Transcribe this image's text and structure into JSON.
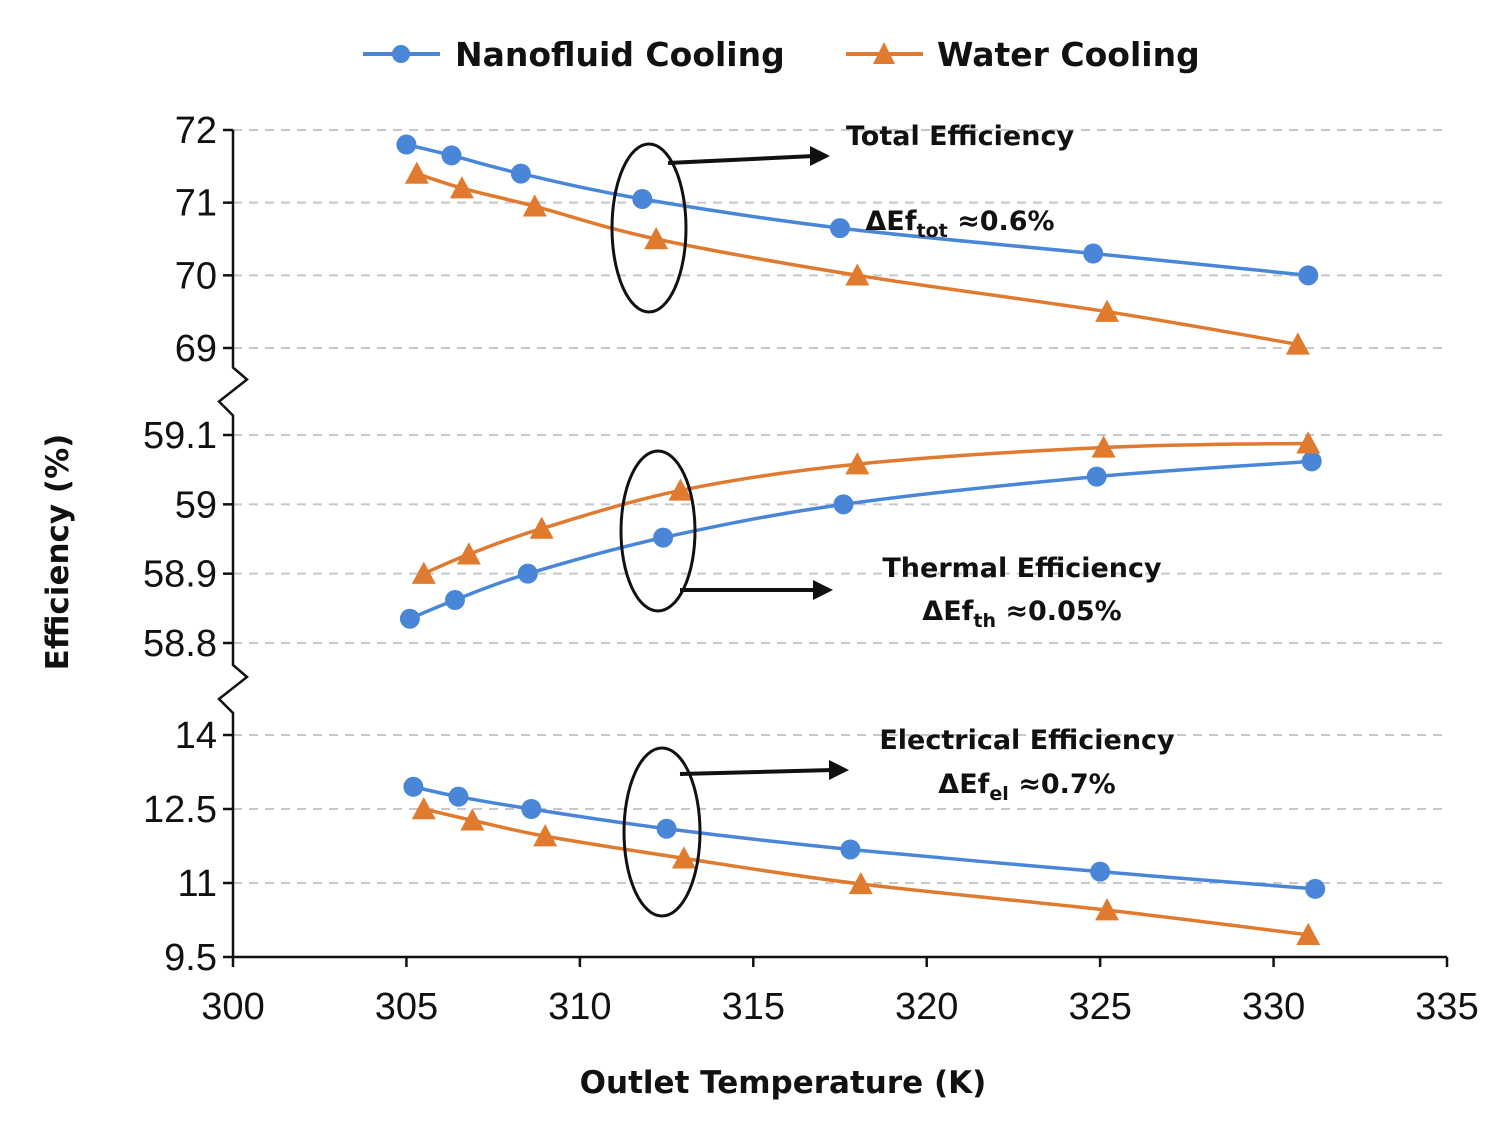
{
  "chart_data": {
    "type": "line",
    "xlabel": "Outlet Temperature (K)",
    "ylabel": "Efficiency (%)",
    "xlim": [
      300,
      335
    ],
    "x_ticks": [
      "300",
      "305",
      "310",
      "315",
      "320",
      "325",
      "330",
      "335"
    ],
    "legend_position": "top",
    "grid": true,
    "broken_y_axis": true,
    "colors": {
      "nanofluid": "#4a86d8",
      "water": "#e07a2e"
    },
    "legend": [
      {
        "name": "Nanofluid Cooling",
        "marker": "circle",
        "color": "#4a86d8"
      },
      {
        "name": "Water Cooling",
        "marker": "triangle",
        "color": "#e07a2e"
      }
    ],
    "panels": [
      {
        "id": "total",
        "ylim": [
          69,
          72
        ],
        "y_ticks": [
          "72",
          "71",
          "70",
          "69"
        ],
        "annotation": {
          "title": "Total Efficiency",
          "delta_prefix": "ΔEf",
          "delta_sub": "tot",
          "delta_value": " ≈0.6%"
        },
        "series": [
          {
            "name": "Nanofluid Cooling",
            "x": [
              305.0,
              306.3,
              308.3,
              311.8,
              317.5,
              324.8,
              331.0
            ],
            "y": [
              71.8,
              71.65,
              71.4,
              71.05,
              70.65,
              70.3,
              70.0
            ]
          },
          {
            "name": "Water Cooling",
            "x": [
              305.3,
              306.6,
              308.7,
              312.2,
              318.0,
              325.2,
              330.7
            ],
            "y": [
              71.4,
              71.2,
              70.95,
              70.5,
              70.0,
              69.5,
              69.05
            ]
          }
        ]
      },
      {
        "id": "thermal",
        "ylim": [
          58.8,
          59.1
        ],
        "y_ticks": [
          "59.1",
          "59",
          "58.9",
          "58.8"
        ],
        "annotation": {
          "title": "Thermal Efficiency",
          "delta_prefix": "ΔEf",
          "delta_sub": "th",
          "delta_value": " ≈0.05%"
        },
        "series": [
          {
            "name": "Nanofluid Cooling",
            "x": [
              305.1,
              306.4,
              308.5,
              312.4,
              317.6,
              324.9,
              331.1
            ],
            "y": [
              58.835,
              58.862,
              58.9,
              58.952,
              59.0,
              59.04,
              59.062
            ]
          },
          {
            "name": "Water Cooling",
            "x": [
              305.5,
              306.8,
              308.9,
              312.9,
              318.0,
              325.1,
              331.0
            ],
            "y": [
              58.9,
              58.928,
              58.965,
              59.02,
              59.058,
              59.082,
              59.088
            ]
          }
        ]
      },
      {
        "id": "electrical",
        "ylim": [
          9.5,
          14
        ],
        "y_ticks": [
          "14",
          "12.5",
          "11",
          "9.5"
        ],
        "annotation": {
          "title": "Electrical Efficiency",
          "delta_prefix": "ΔEf",
          "delta_sub": "el",
          "delta_value": " ≈0.7%"
        },
        "series": [
          {
            "name": "Nanofluid Cooling",
            "x": [
              305.2,
              306.5,
              308.6,
              312.5,
              317.8,
              325.0,
              331.2
            ],
            "y": [
              12.95,
              12.75,
              12.5,
              12.1,
              11.68,
              11.23,
              10.88
            ]
          },
          {
            "name": "Water Cooling",
            "x": [
              305.5,
              306.9,
              309.0,
              313.0,
              318.1,
              325.2,
              331.0
            ],
            "y": [
              12.5,
              12.27,
              11.95,
              11.5,
              10.98,
              10.45,
              9.95
            ]
          }
        ]
      }
    ]
  }
}
